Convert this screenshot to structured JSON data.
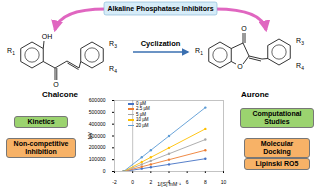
{
  "title": "Alkaline Phosphatase Inhibitors",
  "reaction": {
    "label": "Cyclization"
  },
  "molecules": [
    {
      "name": "Chalcone",
      "atom_labels": [
        "R1",
        "OH",
        "O",
        "R3",
        "R4"
      ]
    },
    {
      "name": "Aurone",
      "atom_labels": [
        "R1",
        "O",
        "O",
        "R3",
        "R4"
      ]
    }
  ],
  "left_panel": {
    "header": "Kinetics",
    "items": [
      "Non-competitive Inhibition"
    ]
  },
  "right_panel": {
    "header": "Computational Studies",
    "items": [
      "Molecular Docking",
      "Lipinski RO5"
    ]
  },
  "chart_data": {
    "type": "line",
    "x_label": "1/[S] mM⁻¹",
    "y_label": "1/V",
    "x": [
      -1,
      1,
      2,
      4,
      8
    ],
    "series": [
      {
        "name": "0 µM",
        "color": "#4472c4",
        "values": [
          0,
          24000,
          36000,
          60000,
          108000
        ]
      },
      {
        "name": "2.5 µM",
        "color": "#ed7d31",
        "values": [
          0,
          40000,
          60000,
          100000,
          180000
        ]
      },
      {
        "name": "5 µM",
        "color": "#a5a5a5",
        "values": [
          0,
          60000,
          90000,
          150000,
          270000
        ]
      },
      {
        "name": "10 µM",
        "color": "#ffc000",
        "values": [
          0,
          80000,
          120000,
          200000,
          360000
        ]
      },
      {
        "name": "20 µM",
        "color": "#5b9bd5",
        "values": [
          0,
          120000,
          180000,
          300000,
          540000
        ]
      }
    ],
    "xlim": [
      -2,
      10
    ],
    "xticks": [
      -2,
      0,
      2,
      4,
      6,
      8,
      10
    ],
    "ylim": [
      0,
      600000
    ],
    "yticks": [
      0,
      100000,
      200000,
      300000,
      400000,
      500000,
      600000
    ],
    "marker": "circle",
    "legend": "top-left"
  }
}
